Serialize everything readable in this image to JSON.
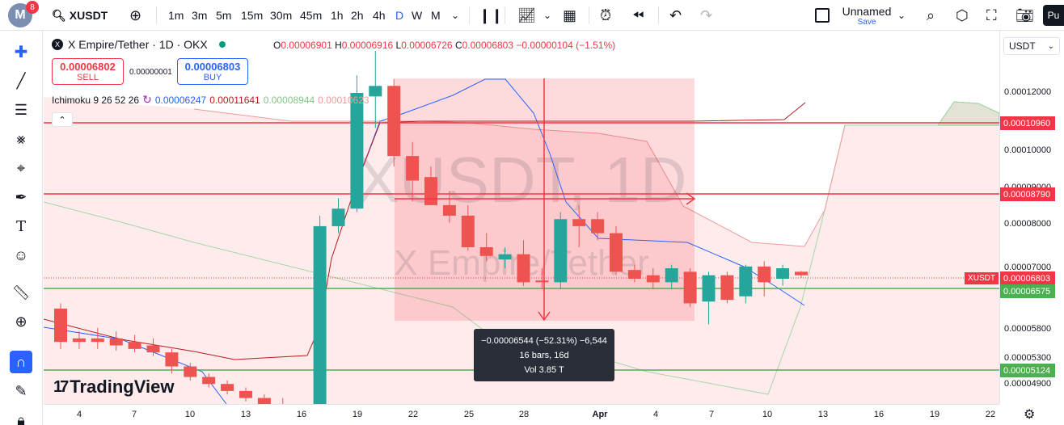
{
  "toolbar": {
    "avatar_letter": "M",
    "notification_count": "8",
    "symbol": "XUSDT",
    "intervals": [
      "1m",
      "3m",
      "5m",
      "15m",
      "30m",
      "45m",
      "1h",
      "2h",
      "4h",
      "D",
      "W",
      "M"
    ],
    "active_interval": "D",
    "layout_name": "Unnamed",
    "save_label": "Save",
    "publish_label": "Pu"
  },
  "legend": {
    "title": "X Empire/Tether · 1D · OKX",
    "o_label": "O",
    "o": "0.00006901",
    "h_label": "H",
    "h": "0.00006916",
    "l_label": "L",
    "l": "0.00006726",
    "c_label": "C",
    "c": "0.00006803",
    "change": "−0.00000104 (−1.51%)"
  },
  "trade": {
    "sell_price": "0.00006802",
    "sell_label": "SELL",
    "spread": "0.00000001",
    "buy_price": "0.00006803",
    "buy_label": "BUY"
  },
  "indicator": {
    "name": "Ichimoku 9 26 52 26",
    "v1": "0.00006247",
    "v2": "0.00011641",
    "v3": "0.00008944",
    "v4": "0.00010623"
  },
  "watermark": {
    "line1": "XUSDT, 1D",
    "line2": "X Empire/Tether"
  },
  "measure": {
    "line1": "−0.00006544 (−52.31%) −6,544",
    "line2": "16 bars, 16d",
    "line3": "Vol 3.85 T"
  },
  "logo_text": "TradingView",
  "right_axis": {
    "currency": "USDT",
    "symbol_tag": "XUSDT",
    "ticks": [
      "0.00012000",
      "0.00010000",
      "0.00009000",
      "0.00008000",
      "0.00007000",
      "0.00005800",
      "0.00005300",
      "0.00004900"
    ],
    "price_tags": [
      {
        "label": "0.00010960",
        "color": "#f23645"
      },
      {
        "label": "0.00008790",
        "color": "#f23645"
      },
      {
        "label": "0.00006803",
        "color": "#f23645"
      },
      {
        "label": "0.00006575",
        "color": "#4caf50"
      },
      {
        "label": "0.00005124",
        "color": "#4caf50"
      }
    ]
  },
  "bottom_axis": {
    "ticks": [
      "4",
      "7",
      "10",
      "13",
      "16",
      "19",
      "22",
      "25",
      "28",
      "Apr",
      "4",
      "7",
      "10",
      "13",
      "16",
      "19",
      "22"
    ]
  },
  "chart_data": {
    "type": "candlestick",
    "horizontal_lines": [
      {
        "price": 0.0001096,
        "color": "#f23645"
      },
      {
        "price": 8.79e-05,
        "color": "#f23645"
      },
      {
        "price": 6.575e-05,
        "color": "#4caf50"
      },
      {
        "price": 5.124e-05,
        "color": "#4caf50"
      }
    ],
    "last_price": 6.803e-05,
    "candles": [
      {
        "o": 5.85e-05,
        "h": 6e-05,
        "l": 4.7e-05,
        "c": 4.9e-05
      },
      {
        "o": 5e-05,
        "h": 5.2e-05,
        "l": 4.7e-05,
        "c": 4.9e-05
      },
      {
        "o": 5e-05,
        "h": 5.3e-05,
        "l": 4.7e-05,
        "c": 4.9e-05
      },
      {
        "o": 5e-05,
        "h": 5.2e-05,
        "l": 4.65e-05,
        "c": 4.8e-05
      },
      {
        "o": 4.9e-05,
        "h": 5.1e-05,
        "l": 4.6e-05,
        "c": 4.7e-05
      },
      {
        "o": 4.8e-05,
        "h": 5e-05,
        "l": 4.5e-05,
        "c": 4.6e-05
      },
      {
        "o": 4.6e-05,
        "h": 4.7e-05,
        "l": 4e-05,
        "c": 4.2e-05
      },
      {
        "o": 4.2e-05,
        "h": 4.3e-05,
        "l": 3.8e-05,
        "c": 3.9e-05
      },
      {
        "o": 3.9e-05,
        "h": 4e-05,
        "l": 3.6e-05,
        "c": 3.7e-05
      },
      {
        "o": 3.7e-05,
        "h": 3.8e-05,
        "l": 3.4e-05,
        "c": 3.5e-05
      },
      {
        "o": 3.5e-05,
        "h": 3.6e-05,
        "l": 3.2e-05,
        "c": 3.3e-05
      },
      {
        "o": 3.3e-05,
        "h": 3.4e-05,
        "l": 3e-05,
        "c": 3.1e-05
      },
      {
        "o": 3.1e-05,
        "h": 3.3e-05,
        "l": 2.9e-05,
        "c": 3e-05
      },
      {
        "o": 3e-05,
        "h": 3.1e-05,
        "l": 2.8e-05,
        "c": 2.9e-05
      },
      {
        "o": 2.9e-05,
        "h": 8.5e-05,
        "l": 2.8e-05,
        "c": 8.2e-05
      },
      {
        "o": 8.2e-05,
        "h": 9e-05,
        "l": 8e-05,
        "c": 8.7e-05
      },
      {
        "o": 8.7e-05,
        "h": 0.000125,
        "l": 8.6e-05,
        "c": 0.00012
      },
      {
        "o": 0.000119,
        "h": 0.000132,
        "l": 0.00011,
        "c": 0.000122
      },
      {
        "o": 0.000122,
        "h": 0.000124,
        "l": 9.9e-05,
        "c": 0.000102
      },
      {
        "o": 0.000102,
        "h": 0.000106,
        "l": 8.9e-05,
        "c": 9.5e-05
      },
      {
        "o": 9.6e-05,
        "h": 9.9e-05,
        "l": 8.8e-05,
        "c": 8.8e-05
      },
      {
        "o": 8.8e-05,
        "h": 9.2e-05,
        "l": 8.3e-05,
        "c": 8.5e-05
      },
      {
        "o": 8.5e-05,
        "h": 8.8e-05,
        "l": 7.5e-05,
        "c": 7.6e-05
      },
      {
        "o": 7.6e-05,
        "h": 8e-05,
        "l": 7.2e-05,
        "c": 7.35e-05
      },
      {
        "o": 7.25e-05,
        "h": 7.6e-05,
        "l": 7e-05,
        "c": 7.4e-05
      },
      {
        "o": 7.4e-05,
        "h": 7.8e-05,
        "l": 6.5e-05,
        "c": 6.6e-05
      },
      {
        "o": 6.65e-05,
        "h": 7e-05,
        "l": 6.4e-05,
        "c": 6.6e-05
      },
      {
        "o": 6.6e-05,
        "h": 8.6e-05,
        "l": 6.4e-05,
        "c": 8.4e-05
      },
      {
        "o": 8.4e-05,
        "h": 8.8e-05,
        "l": 7.6e-05,
        "c": 8.2e-05
      },
      {
        "o": 8.4e-05,
        "h": 8.6e-05,
        "l": 7.8e-05,
        "c": 8e-05
      },
      {
        "o": 8e-05,
        "h": 8.2e-05,
        "l": 6.8e-05,
        "c": 6.9e-05
      },
      {
        "o": 6.95e-05,
        "h": 7.1e-05,
        "l": 6.6e-05,
        "c": 6.7e-05
      },
      {
        "o": 6.8e-05,
        "h": 7e-05,
        "l": 6.4e-05,
        "c": 6.6e-05
      },
      {
        "o": 6.6e-05,
        "h": 7.1e-05,
        "l": 6.4e-05,
        "c": 7e-05
      },
      {
        "o": 6.9e-05,
        "h": 7e-05,
        "l": 5.9e-05,
        "c": 6e-05
      },
      {
        "o": 6.05e-05,
        "h": 6.9e-05,
        "l": 5.4e-05,
        "c": 6.8e-05
      },
      {
        "o": 6.8e-05,
        "h": 6.9e-05,
        "l": 6e-05,
        "c": 6.1e-05
      },
      {
        "o": 6.2e-05,
        "h": 7.1e-05,
        "l": 6e-05,
        "c": 7.05e-05
      },
      {
        "o": 7.05e-05,
        "h": 7.2e-05,
        "l": 6.2e-05,
        "c": 6.6e-05
      },
      {
        "o": 6.7e-05,
        "h": 7.1e-05,
        "l": 6.5e-05,
        "c": 7e-05
      },
      {
        "o": 6.9e-05,
        "h": 6.92e-05,
        "l": 6.73e-05,
        "c": 6.8e-05
      }
    ]
  }
}
